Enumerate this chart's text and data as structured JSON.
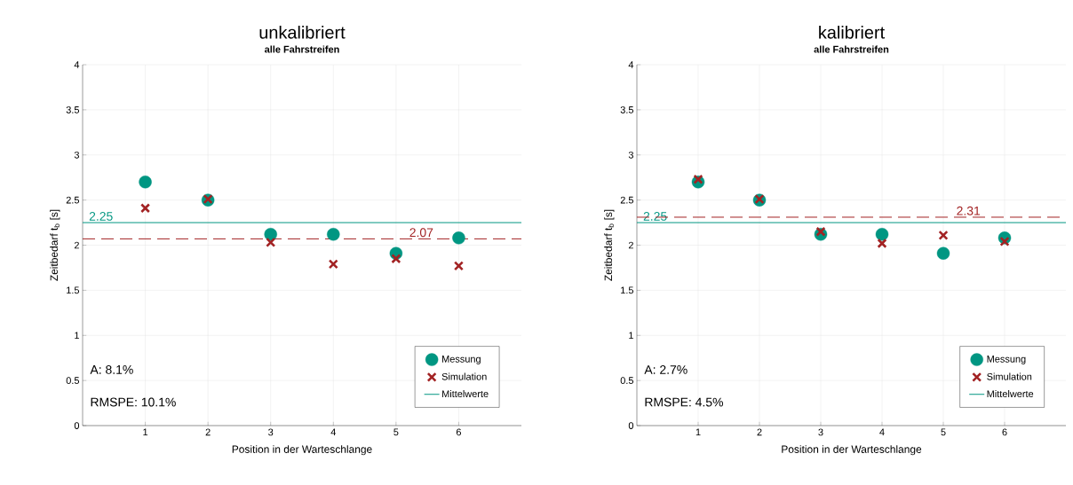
{
  "chart_data": [
    {
      "type": "scatter",
      "title": "unkalibriert",
      "subtitle": "alle Fahrstreifen",
      "xlabel": "Position in der Warteschlange",
      "ylabel": "Zeitbedarf  t$_{b}$ [s]",
      "x": [
        1,
        2,
        3,
        4,
        5,
        6
      ],
      "series": [
        {
          "name": "Messung",
          "color": "#009682",
          "marker": "circle",
          "values": [
            2.7,
            2.5,
            2.12,
            2.12,
            1.91,
            2.08
          ]
        },
        {
          "name": "Simulation",
          "color": "#a22223",
          "marker": "cross",
          "values": [
            2.41,
            2.51,
            2.03,
            1.79,
            1.85,
            1.77
          ]
        }
      ],
      "ref_lines": [
        {
          "axis": "y",
          "value": 2.25,
          "label": "2.25",
          "color": "#009682",
          "line_style": "solid"
        },
        {
          "axis": "y",
          "value": 2.07,
          "label": "2.07",
          "color": "#a22223",
          "line_style": "dashed"
        }
      ],
      "annotations": [
        "A: 8.1%",
        "RMSPE: 10.1%",
        "Mittelwerte"
      ],
      "xlim": [
        0,
        7
      ],
      "xticks": [
        1,
        2,
        3,
        4,
        5,
        6
      ],
      "ylim": [
        0,
        4
      ],
      "yticks": [
        0,
        0.5,
        1,
        1.5,
        2,
        2.5,
        3,
        3.5,
        4
      ],
      "grid": true,
      "legend": "bottom right"
    },
    {
      "type": "scatter",
      "title": "kalibriert",
      "subtitle": "alle Fahrstreifen",
      "xlabel": "Position in der Warteschlange",
      "ylabel": "Zeitbedarf  t$_{b}$ [s]",
      "x": [
        1,
        2,
        3,
        4,
        5,
        6
      ],
      "series": [
        {
          "name": "Messung",
          "color": "#009682",
          "marker": "circle",
          "values": [
            2.7,
            2.5,
            2.12,
            2.12,
            1.91,
            2.08
          ]
        },
        {
          "name": "Simulation",
          "color": "#a22223",
          "marker": "cross",
          "values": [
            2.73,
            2.51,
            2.15,
            2.02,
            2.11,
            2.04
          ]
        }
      ],
      "ref_lines": [
        {
          "axis": "y",
          "value": 2.25,
          "label": "2.25",
          "color": "#009682",
          "line_style": "solid"
        },
        {
          "axis": "y",
          "value": 2.31,
          "label": "2.31",
          "color": "#a22223",
          "line_style": "dashed"
        }
      ],
      "annotations": [
        "A: 2.7%",
        "RMSPE: 4.5%",
        "Mittelwerte"
      ],
      "xlim": [
        0,
        7
      ],
      "xticks": [
        1,
        2,
        3,
        4,
        5,
        6
      ],
      "ylim": [
        0,
        4
      ],
      "yticks": [
        0,
        0.5,
        1,
        1.5,
        2,
        2.5,
        3,
        3.5,
        4
      ],
      "grid": true,
      "legend": "bottom right"
    }
  ]
}
